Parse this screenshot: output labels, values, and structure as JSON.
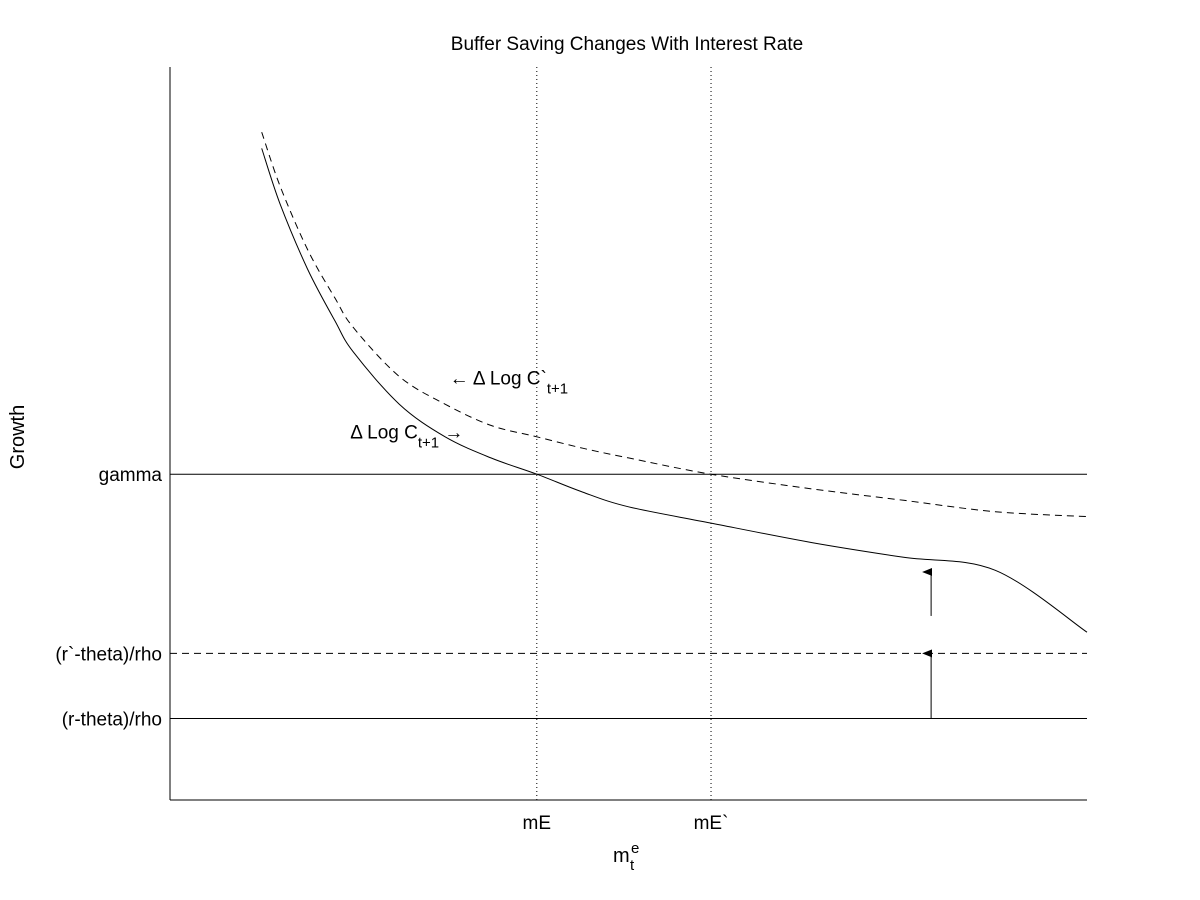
{
  "chart_data": {
    "type": "line",
    "title": "Buffer Saving Changes With Interest Rate",
    "xlabel": {
      "base": "m",
      "sup": "e",
      "sub": "t"
    },
    "ylabel": "Growth",
    "xlim": [
      0,
      10
    ],
    "ylim": [
      -0.5,
      4
    ],
    "grid": false,
    "x_ticks": [
      {
        "value": 4,
        "label": "mE"
      },
      {
        "value": 5.9,
        "label": "mE`"
      }
    ],
    "y_ticks": [
      {
        "value": 0,
        "label": "(r-theta)/rho"
      },
      {
        "value": 0.4,
        "label": "(r`-theta)/rho"
      },
      {
        "value": 1.5,
        "label": "gamma"
      }
    ],
    "vertical_guides": [
      4,
      5.9
    ],
    "horizontal_lines": [
      {
        "name": "gamma",
        "y": 1.5,
        "style": "solid"
      },
      {
        "name": "(r`-theta)/rho",
        "y": 0.4,
        "style": "dashed"
      },
      {
        "name": "(r-theta)/rho",
        "y": 0,
        "style": "solid"
      }
    ],
    "series": [
      {
        "style": "solid",
        "x": [
          1.0,
          1.2,
          1.5,
          1.8,
          2.0,
          2.5,
          3.0,
          3.5,
          4.0,
          4.5,
          5.0,
          5.9,
          7.0,
          8.0,
          9.0,
          10.0
        ],
        "y": [
          3.5,
          3.16,
          2.76,
          2.44,
          2.25,
          1.93,
          1.73,
          1.6,
          1.5,
          1.39,
          1.3,
          1.2,
          1.08,
          0.99,
          0.91,
          0.53
        ]
      },
      {
        "style": "dashed",
        "x": [
          1.0,
          1.2,
          1.5,
          1.8,
          2.0,
          2.5,
          3.0,
          3.5,
          4.0,
          4.5,
          5.0,
          5.9,
          7.0,
          8.0,
          9.0,
          10.0
        ],
        "y": [
          3.6,
          3.27,
          2.88,
          2.58,
          2.4,
          2.1,
          1.93,
          1.8,
          1.73,
          1.66,
          1.6,
          1.5,
          1.41,
          1.34,
          1.27,
          1.24
        ]
      }
    ],
    "annotations": [
      {
        "text": "Δ Log C",
        "sub": "t+1",
        "arrow": "→",
        "at": [
          3.2,
          1.72
        ]
      },
      {
        "text": "Δ Log C`",
        "sub": "t+1",
        "arrow": "←",
        "at": [
          3.05,
          2.05
        ]
      }
    ],
    "shift_arrows": [
      {
        "x": 8.3,
        "from": 0,
        "to": 0.4
      },
      {
        "x": 8.3,
        "from": 0.63,
        "to": 0.9
      }
    ]
  }
}
